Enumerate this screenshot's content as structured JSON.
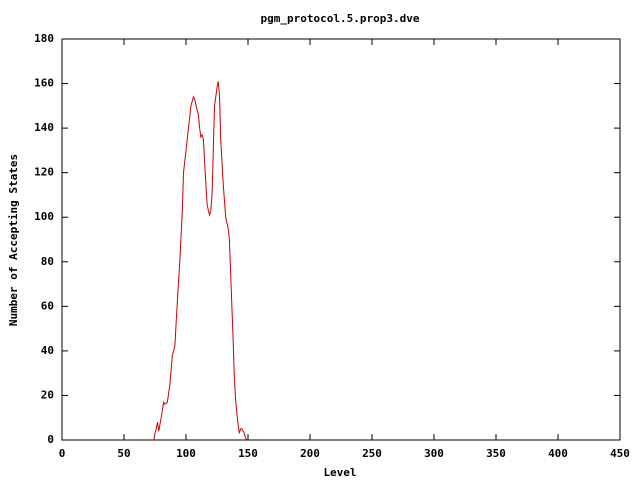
{
  "chart_data": {
    "type": "line",
    "title": "pgm_protocol.5.prop3.dve",
    "x_label": "Level",
    "y_label": "Number of Accepting States",
    "xlim": [
      0,
      450
    ],
    "xticks": [
      0,
      50,
      100,
      150,
      200,
      250,
      300,
      350,
      400,
      450
    ],
    "ylim": [
      0,
      180
    ],
    "yticks": [
      0,
      20,
      40,
      60,
      80,
      100,
      120,
      140,
      160,
      180
    ],
    "series": [
      {
        "color": "#cc0000",
        "x": [
          74,
          75,
          76,
          77,
          78,
          79,
          80,
          82,
          83,
          85,
          87,
          89,
          90,
          91,
          93,
          95,
          97,
          98,
          100,
          102,
          104,
          106,
          107,
          109,
          110,
          111,
          112,
          113,
          114,
          115,
          116,
          117,
          118,
          119,
          120,
          121,
          122,
          123,
          125,
          126,
          127,
          128,
          130,
          132,
          134,
          135,
          136,
          137,
          138,
          139,
          140,
          141,
          142,
          143,
          144,
          145,
          146,
          147,
          148,
          149
        ],
        "values": [
          0,
          3,
          5,
          8,
          4,
          7,
          10,
          17,
          16,
          17,
          25,
          38,
          40,
          42,
          62,
          80,
          103,
          120,
          130,
          140,
          150,
          154,
          153,
          148,
          146,
          140,
          136,
          137,
          135,
          125,
          115,
          106,
          103,
          101,
          103,
          110,
          130,
          150,
          158,
          161,
          155,
          135,
          115,
          100,
          95,
          90,
          75,
          60,
          45,
          28,
          18,
          12,
          7,
          3,
          5,
          5,
          4,
          3,
          1,
          0
        ]
      }
    ]
  }
}
